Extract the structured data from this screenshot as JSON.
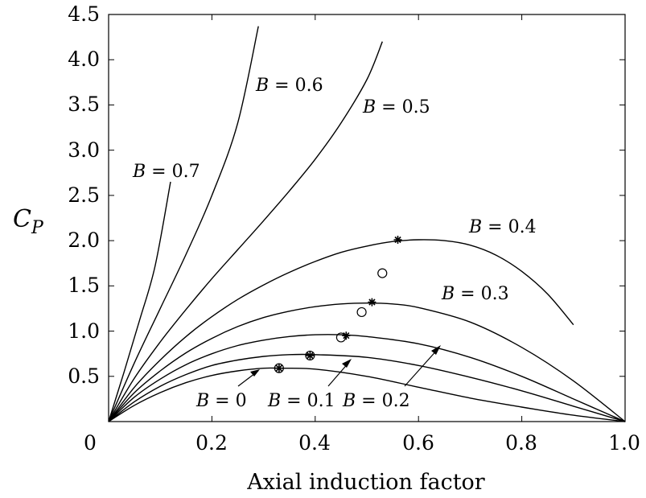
{
  "chart_data": {
    "type": "line",
    "xlabel": "Axial induction factor",
    "ylabel": "C",
    "ylabel_sub": "P",
    "xlim": [
      0,
      1
    ],
    "ylim": [
      0,
      4.5
    ],
    "x_ticks": [
      "0",
      "0.2",
      "0.4",
      "0.6",
      "0.8",
      "1.0"
    ],
    "y_ticks": [
      "0.5",
      "1.0",
      "1.5",
      "2.0",
      "2.5",
      "3.0",
      "3.5",
      "4.0",
      "4.5"
    ],
    "grid": false,
    "legend": "none",
    "series": [
      {
        "name": "B = 0",
        "x": [
          0,
          0.05,
          0.1,
          0.15,
          0.2,
          0.25,
          0.3,
          0.333,
          0.4,
          0.5,
          0.6,
          0.7,
          0.8,
          0.9,
          1.0
        ],
        "y": [
          0,
          0.18,
          0.32,
          0.43,
          0.51,
          0.56,
          0.59,
          0.59,
          0.58,
          0.5,
          0.38,
          0.26,
          0.16,
          0.07,
          0
        ]
      },
      {
        "name": "B = 0.1",
        "x": [
          0,
          0.05,
          0.1,
          0.15,
          0.2,
          0.25,
          0.3,
          0.35,
          0.4,
          0.5,
          0.6,
          0.7,
          0.8,
          0.9,
          1.0
        ],
        "y": [
          0,
          0.22,
          0.39,
          0.52,
          0.62,
          0.68,
          0.72,
          0.74,
          0.74,
          0.71,
          0.62,
          0.49,
          0.34,
          0.17,
          0
        ]
      },
      {
        "name": "B = 0.2",
        "x": [
          0,
          0.05,
          0.1,
          0.15,
          0.2,
          0.25,
          0.3,
          0.35,
          0.4,
          0.45,
          0.5,
          0.6,
          0.7,
          0.8,
          0.9,
          1.0
        ],
        "y": [
          0,
          0.27,
          0.47,
          0.63,
          0.75,
          0.84,
          0.9,
          0.94,
          0.96,
          0.96,
          0.94,
          0.86,
          0.71,
          0.5,
          0.25,
          0
        ]
      },
      {
        "name": "B = 0.3",
        "x": [
          0,
          0.05,
          0.1,
          0.15,
          0.2,
          0.25,
          0.3,
          0.35,
          0.4,
          0.45,
          0.5,
          0.55,
          0.6,
          0.7,
          0.8,
          0.9,
          1.0
        ],
        "y": [
          0,
          0.32,
          0.56,
          0.76,
          0.92,
          1.05,
          1.15,
          1.22,
          1.27,
          1.3,
          1.31,
          1.3,
          1.26,
          1.1,
          0.82,
          0.45,
          0
        ]
      },
      {
        "name": "B = 0.4",
        "x": [
          0,
          0.05,
          0.1,
          0.15,
          0.2,
          0.25,
          0.3,
          0.35,
          0.4,
          0.45,
          0.5,
          0.55,
          0.6,
          0.65,
          0.7,
          0.75,
          0.8,
          0.85,
          0.9
        ],
        "y": [
          0,
          0.38,
          0.68,
          0.94,
          1.16,
          1.35,
          1.51,
          1.65,
          1.77,
          1.87,
          1.94,
          1.99,
          2.01,
          2.0,
          1.95,
          1.84,
          1.66,
          1.41,
          1.07
        ]
      },
      {
        "name": "B = 0.5",
        "x": [
          0,
          0.05,
          0.1,
          0.15,
          0.2,
          0.25,
          0.3,
          0.35,
          0.4,
          0.45,
          0.5,
          0.53
        ],
        "y": [
          0,
          0.48,
          0.88,
          1.24,
          1.58,
          1.9,
          2.22,
          2.55,
          2.9,
          3.3,
          3.78,
          4.2
        ]
      },
      {
        "name": "B = 0.6",
        "x": [
          0,
          0.05,
          0.1,
          0.15,
          0.2,
          0.25,
          0.29
        ],
        "y": [
          0,
          0.65,
          1.25,
          1.85,
          2.5,
          3.3,
          4.37
        ]
      },
      {
        "name": "B = 0.7",
        "x": [
          0,
          0.03,
          0.06,
          0.09,
          0.12
        ],
        "y": [
          0,
          0.55,
          1.12,
          1.72,
          2.65
        ]
      }
    ],
    "star_markers": {
      "x": [
        0.33,
        0.39,
        0.46,
        0.51,
        0.56
      ],
      "y": [
        0.59,
        0.73,
        0.95,
        1.32,
        2.01
      ]
    },
    "circle_markers": {
      "x": [
        0.33,
        0.39,
        0.45,
        0.49,
        0.53
      ],
      "y": [
        0.59,
        0.73,
        0.93,
        1.21,
        1.64
      ]
    }
  },
  "curve_labels": {
    "b00": {
      "sym": "B",
      "val": " = 0"
    },
    "b01": {
      "sym": "B",
      "val": " = 0.1"
    },
    "b02": {
      "sym": "B",
      "val": " = 0.2"
    },
    "b03": {
      "sym": "B",
      "val": " = 0.3"
    },
    "b04": {
      "sym": "B",
      "val": " = 0.4"
    },
    "b05": {
      "sym": "B",
      "val": " = 0.5"
    },
    "b06": {
      "sym": "B",
      "val": " = 0.6"
    },
    "b07": {
      "sym": "B",
      "val": " = 0.7"
    }
  }
}
